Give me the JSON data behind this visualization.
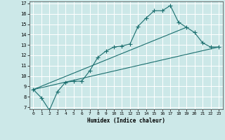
{
  "title": "",
  "xlabel": "Humidex (Indice chaleur)",
  "bg_color": "#cce8e8",
  "grid_color": "#ffffff",
  "line_color": "#1a6e6e",
  "xlim": [
    -0.5,
    23.5
  ],
  "ylim": [
    6.8,
    17.2
  ],
  "xticks": [
    0,
    1,
    2,
    3,
    4,
    5,
    6,
    7,
    8,
    9,
    10,
    11,
    12,
    13,
    14,
    15,
    16,
    17,
    18,
    19,
    20,
    21,
    22,
    23
  ],
  "yticks": [
    7,
    8,
    9,
    10,
    11,
    12,
    13,
    14,
    15,
    16,
    17
  ],
  "series1_x": [
    0,
    1,
    2,
    3,
    4,
    5,
    6,
    7,
    8,
    9,
    10,
    11,
    12,
    13,
    14,
    15,
    16,
    17,
    18,
    19,
    20,
    21,
    22,
    23
  ],
  "series1_y": [
    8.7,
    7.9,
    6.7,
    8.5,
    9.4,
    9.5,
    9.5,
    10.5,
    11.8,
    12.4,
    12.8,
    12.9,
    13.1,
    14.8,
    15.6,
    16.3,
    16.3,
    16.8,
    15.2,
    14.7,
    14.2,
    13.2,
    12.8,
    12.8
  ],
  "series2_x": [
    0,
    23
  ],
  "series2_y": [
    8.7,
    12.8
  ],
  "series3_x": [
    0,
    19
  ],
  "series3_y": [
    8.7,
    14.7
  ],
  "marker_size": 4,
  "linewidth": 0.8
}
